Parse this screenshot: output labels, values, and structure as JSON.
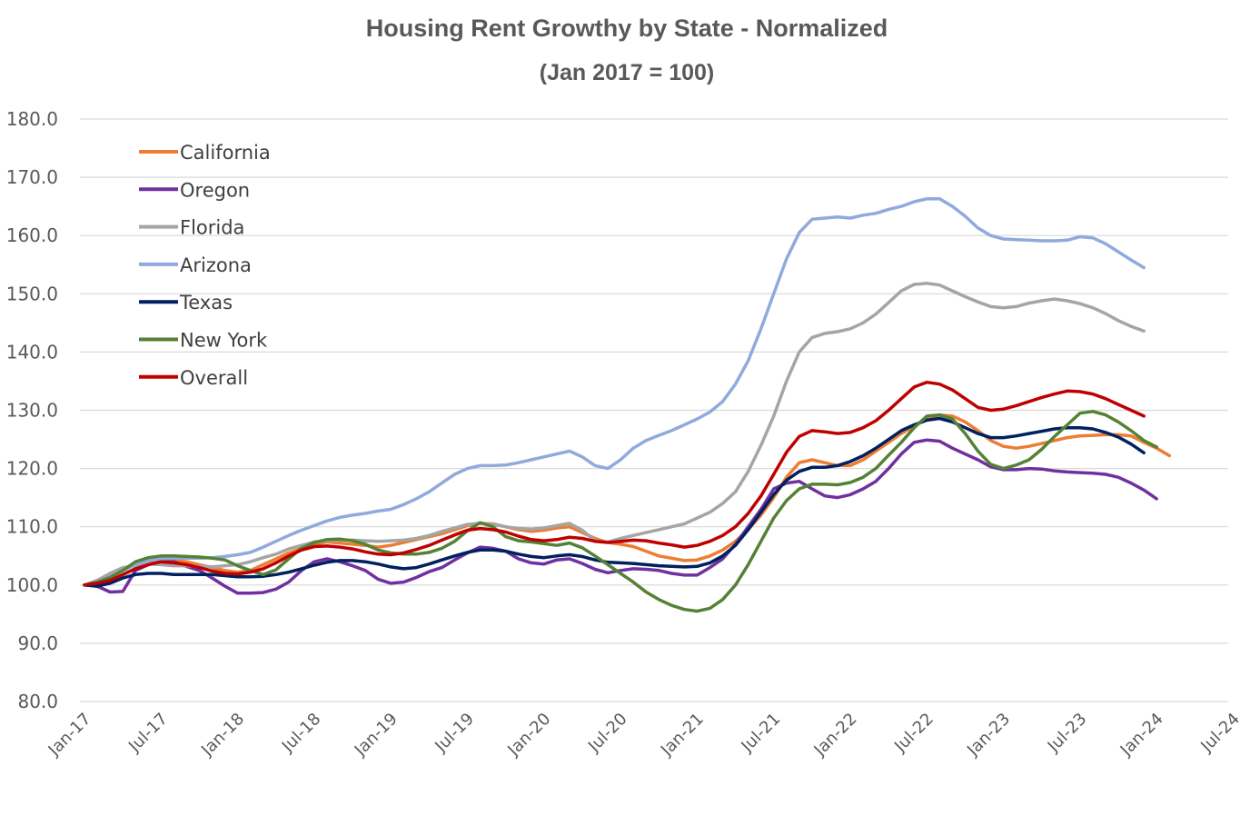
{
  "chart_data": {
    "type": "line",
    "title": "Housing Rent Growthy by State - Normalized",
    "subtitle": "(Jan 2017 = 100)",
    "xlabel": "",
    "ylabel": "",
    "x_start": "Jan-17",
    "x_ticks": [
      "Jan-17",
      "Jul-17",
      "Jan-18",
      "Jul-18",
      "Jan-19",
      "Jul-19",
      "Jan-20",
      "Jul-20",
      "Jan-21",
      "Jul-21",
      "Jan-22",
      "Jul-22",
      "Jan-23",
      "Jul-23",
      "Jan-24",
      "Jul-24"
    ],
    "ylim": [
      80,
      180
    ],
    "y_ticks": [
      "80.0",
      "90.0",
      "100.0",
      "110.0",
      "120.0",
      "130.0",
      "140.0",
      "150.0",
      "160.0",
      "170.0",
      "180.0"
    ],
    "grid": true,
    "legend_position": "top-left",
    "series": [
      {
        "name": "California",
        "color": "#ED7D31",
        "values": [
          100,
          100.5,
          101.5,
          102.5,
          103.5,
          103.8,
          104,
          104.2,
          104,
          103.5,
          103,
          102.5,
          102.2,
          102.5,
          103.5,
          104.5,
          105.5,
          106.3,
          107,
          107.4,
          107.2,
          107,
          106.8,
          106.5,
          106.8,
          107.3,
          107.8,
          108.3,
          108.8,
          109.5,
          110.2,
          110.6,
          110.5,
          110,
          109.5,
          109.2,
          109.4,
          109.8,
          110,
          109,
          108,
          107.3,
          107,
          106.6,
          105.8,
          105,
          104.6,
          104.2,
          104.3,
          105,
          106,
          107.5,
          109.5,
          112,
          115,
          118.5,
          121,
          121.5,
          121,
          120.5,
          120.5,
          121.5,
          123,
          124.5,
          126,
          127.3,
          128.5,
          129.2,
          129,
          128,
          126.5,
          124.8,
          123.8,
          123.5,
          123.8,
          124.3,
          124.8,
          125.3,
          125.6,
          125.7,
          125.8,
          125.8,
          125.6,
          124.5,
          123.5,
          122.2
        ]
      },
      {
        "name": "Oregon",
        "color": "#7030A0",
        "values": [
          100,
          99.8,
          98.8,
          98.9,
          102.5,
          103.5,
          104,
          104,
          103.2,
          102.5,
          101.2,
          99.8,
          98.6,
          98.6,
          98.7,
          99.3,
          100.5,
          102.5,
          104,
          104.5,
          104,
          103.3,
          102.5,
          101,
          100.3,
          100.5,
          101.3,
          102.3,
          103,
          104.3,
          105.5,
          106.5,
          106.3,
          105.8,
          104.5,
          103.8,
          103.6,
          104.3,
          104.5,
          103.7,
          102.7,
          102.1,
          102.5,
          102.8,
          102.7,
          102.5,
          102,
          101.7,
          101.7,
          103,
          104.5,
          107,
          110,
          113,
          116.5,
          117.5,
          117.8,
          116.5,
          115.3,
          115,
          115.5,
          116.5,
          117.8,
          120,
          122.5,
          124.5,
          124.9,
          124.7,
          123.5,
          122.5,
          121.5,
          120.3,
          119.8,
          119.8,
          120,
          119.9,
          119.6,
          119.4,
          119.3,
          119.2,
          119,
          118.5,
          117.5,
          116.3,
          114.8
        ]
      },
      {
        "name": "Florida",
        "color": "#A5A5A5",
        "values": [
          100,
          100.8,
          102,
          103,
          103.3,
          103.6,
          103.5,
          103.3,
          103.3,
          103.2,
          103.1,
          103.3,
          103.5,
          104,
          104.7,
          105.3,
          106.2,
          106.8,
          107.4,
          107.6,
          107.7,
          107.7,
          107.6,
          107.5,
          107.6,
          107.7,
          108,
          108.5,
          109.2,
          109.8,
          110.4,
          110.6,
          110.4,
          110,
          109.7,
          109.6,
          109.8,
          110.2,
          110.6,
          109.4,
          107.6,
          107.4,
          108,
          108.5,
          109,
          109.5,
          110,
          110.5,
          111.5,
          112.5,
          114,
          116,
          119.5,
          124,
          129,
          135,
          140,
          142.5,
          143.2,
          143.5,
          144,
          145,
          146.5,
          148.5,
          150.5,
          151.6,
          151.8,
          151.5,
          150.5,
          149.5,
          148.6,
          147.8,
          147.6,
          147.8,
          148.4,
          148.8,
          149.1,
          148.8,
          148.3,
          147.6,
          146.6,
          145.4,
          144.4,
          143.6
        ]
      },
      {
        "name": "Arizona",
        "color": "#8FAADC",
        "values": [
          100,
          100.5,
          101.5,
          102.5,
          103.5,
          104.2,
          104.5,
          104.6,
          104.6,
          104.6,
          104.7,
          104.9,
          105.2,
          105.6,
          106.5,
          107.5,
          108.5,
          109.4,
          110.2,
          111,
          111.6,
          112,
          112.3,
          112.7,
          113,
          113.8,
          114.8,
          116,
          117.5,
          119,
          120,
          120.5,
          120.5,
          120.6,
          121,
          121.5,
          122,
          122.5,
          123,
          122,
          120.5,
          120,
          121.5,
          123.5,
          124.8,
          125.7,
          126.5,
          127.5,
          128.5,
          129.7,
          131.5,
          134.5,
          138.5,
          144,
          150,
          156,
          160.5,
          162.8,
          163,
          163.2,
          163,
          163.5,
          163.8,
          164.5,
          165,
          165.8,
          166.3,
          166.3,
          165,
          163.3,
          161.3,
          160,
          159.4,
          159.3,
          159.2,
          159.1,
          159.1,
          159.2,
          159.8,
          159.6,
          158.6,
          157.2,
          155.8,
          154.5
        ]
      },
      {
        "name": "Texas",
        "color": "#002060",
        "values": [
          100,
          99.8,
          100.3,
          101.2,
          101.8,
          102,
          102,
          101.8,
          101.8,
          101.8,
          101.8,
          101.6,
          101.4,
          101.4,
          101.5,
          101.8,
          102.2,
          102.8,
          103.4,
          103.9,
          104.2,
          104.2,
          104,
          103.6,
          103.1,
          102.8,
          103,
          103.6,
          104.3,
          105,
          105.6,
          106,
          106,
          105.8,
          105.3,
          104.9,
          104.7,
          105,
          105.2,
          104.9,
          104.3,
          103.9,
          103.8,
          103.7,
          103.5,
          103.3,
          103.2,
          103.1,
          103.2,
          103.8,
          105,
          106.8,
          109.5,
          112.5,
          115.5,
          118,
          119.5,
          120.2,
          120.2,
          120.5,
          121.2,
          122.2,
          123.5,
          125,
          126.5,
          127.5,
          128.3,
          128.6,
          128,
          127,
          126,
          125.3,
          125.3,
          125.6,
          126,
          126.4,
          126.8,
          127,
          127,
          126.8,
          126.2,
          125.4,
          124.2,
          122.7
        ]
      },
      {
        "name": "New York",
        "color": "#548235",
        "values": [
          100,
          100.5,
          101.3,
          102.5,
          104,
          104.7,
          105,
          105,
          104.9,
          104.8,
          104.6,
          104.3,
          103.3,
          102.5,
          101.8,
          102.6,
          104.5,
          106.3,
          107.3,
          107.8,
          107.9,
          107.6,
          107,
          106,
          105.5,
          105.3,
          105.3,
          105.6,
          106.3,
          107.5,
          109.3,
          110.7,
          110,
          108.3,
          107.6,
          107.4,
          107.1,
          106.8,
          107.2,
          106.4,
          105,
          103.5,
          102,
          100.5,
          98.8,
          97.5,
          96.5,
          95.8,
          95.5,
          96,
          97.5,
          100,
          103.5,
          107.5,
          111.5,
          114.5,
          116.5,
          117.3,
          117.3,
          117.2,
          117.6,
          118.5,
          120,
          122.3,
          124.5,
          127,
          129,
          129.2,
          128.5,
          126,
          123,
          120.7,
          120,
          120.6,
          121.5,
          123.3,
          125.5,
          127.5,
          129.5,
          129.8,
          129.2,
          128,
          126.5,
          124.8,
          123.7
        ]
      },
      {
        "name": "Overall",
        "color": "#C00000",
        "values": [
          100,
          100.3,
          100.8,
          101.8,
          102.8,
          103.5,
          104,
          103.8,
          103.5,
          103,
          102.4,
          102,
          101.9,
          102.2,
          102.8,
          103.8,
          105,
          106,
          106.6,
          106.7,
          106.5,
          106.2,
          105.7,
          105.3,
          105.2,
          105.5,
          106.1,
          106.8,
          107.7,
          108.6,
          109.4,
          109.7,
          109.5,
          109.1,
          108.4,
          107.8,
          107.6,
          107.8,
          108.2,
          108,
          107.5,
          107.3,
          107.5,
          107.7,
          107.6,
          107.2,
          106.9,
          106.5,
          106.8,
          107.5,
          108.5,
          110,
          112.3,
          115.3,
          119,
          122.8,
          125.5,
          126.5,
          126.3,
          126,
          126.2,
          127,
          128.2,
          130,
          132,
          134,
          134.8,
          134.5,
          133.5,
          132,
          130.5,
          130,
          130.2,
          130.8,
          131.5,
          132.2,
          132.8,
          133.3,
          133.2,
          132.8,
          132,
          131,
          130,
          129
        ]
      }
    ]
  }
}
